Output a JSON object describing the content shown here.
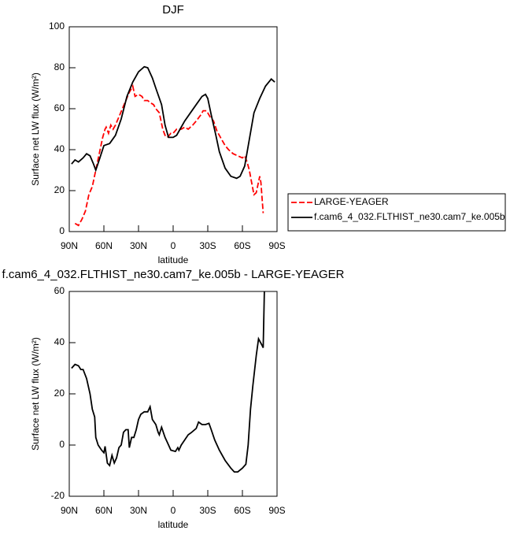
{
  "chart_data": [
    {
      "type": "line",
      "title": "DJF",
      "xlabel": "latitude",
      "ylabel": "Surface net LW flux (W/m²)",
      "xlim": [
        90,
        -90
      ],
      "xticks": [
        {
          "value": 90,
          "label": "90N"
        },
        {
          "value": 60,
          "label": "60N"
        },
        {
          "value": 30,
          "label": "30N"
        },
        0,
        {
          "value": -30,
          "label": "30S"
        },
        {
          "value": -60,
          "label": "60S"
        },
        {
          "value": -90,
          "label": "90S"
        }
      ],
      "ylim": [
        0,
        100
      ],
      "yticks": [
        0,
        20,
        40,
        60,
        80,
        100
      ],
      "legend": "right outside",
      "series": [
        {
          "name": "LARGE-YEAGER",
          "color": "#ff0000",
          "dashed": true,
          "x": [
            85,
            82,
            79,
            76,
            73,
            70,
            67,
            64,
            61,
            59,
            58,
            56,
            54,
            52,
            50,
            47,
            44,
            41,
            38,
            35,
            33,
            30,
            27,
            25,
            22,
            20,
            17,
            15,
            12,
            9,
            7,
            5,
            2,
            0,
            -3,
            -7,
            -10,
            -13,
            -17,
            -20,
            -24,
            -26,
            -29,
            -32,
            -35,
            -38,
            -42,
            -45,
            -48,
            -52,
            -56,
            -60,
            -62,
            -64,
            -66,
            -68,
            -70,
            -72,
            -75,
            -76,
            -78
          ],
          "values": [
            4,
            3,
            6,
            10,
            18,
            22,
            30,
            38,
            46,
            50,
            51,
            48,
            52,
            50,
            52,
            56,
            60,
            64,
            68,
            71,
            66,
            67,
            66,
            64,
            64,
            63,
            62,
            60,
            58,
            50,
            47,
            46,
            48,
            48,
            50,
            50,
            51,
            50,
            52,
            54,
            57,
            59,
            59,
            56,
            54,
            49,
            45,
            42,
            40,
            38,
            37,
            36,
            37,
            34,
            30,
            24,
            18,
            19,
            27,
            24,
            9
          ]
        },
        {
          "name": "f.cam6_4_032.FLTHIST_ne30.cam7_ke.005b",
          "color": "#000000",
          "dashed": false,
          "x": [
            88,
            85,
            82,
            78,
            75,
            72,
            69,
            67,
            64,
            60,
            55,
            50,
            45,
            40,
            35,
            30,
            25,
            22,
            18,
            15,
            10,
            7,
            4,
            0,
            -3,
            -6,
            -10,
            -15,
            -20,
            -25,
            -28,
            -30,
            -33,
            -37,
            -40,
            -45,
            -50,
            -55,
            -58,
            -62,
            -66,
            -70,
            -75,
            -80,
            -85,
            -88
          ],
          "values": [
            33,
            35,
            34,
            36,
            38,
            37,
            33,
            30,
            35,
            42,
            43,
            47,
            55,
            66,
            73,
            78,
            80.5,
            80,
            75,
            70,
            62,
            52,
            46,
            46,
            47,
            50,
            54,
            58,
            62,
            66,
            67,
            65,
            57,
            47,
            39,
            31,
            27,
            26,
            27,
            32,
            45,
            58,
            65,
            71,
            74.5,
            73
          ]
        }
      ]
    },
    {
      "type": "line",
      "title": "f.cam6_4_032.FLTHIST_ne30.cam7_ke.005b - LARGE-YEAGER",
      "xlabel": "latitude",
      "ylabel": "Surface net LW flux (W/m²)",
      "xlim": [
        90,
        -90
      ],
      "xticks": [
        {
          "value": 90,
          "label": "90N"
        },
        {
          "value": 60,
          "label": "60N"
        },
        {
          "value": 30,
          "label": "30N"
        },
        0,
        {
          "value": -30,
          "label": "30S"
        },
        {
          "value": -60,
          "label": "60S"
        },
        {
          "value": -90,
          "label": "90S"
        }
      ],
      "ylim": [
        -20,
        60
      ],
      "yticks": [
        -20,
        0,
        20,
        40,
        60
      ],
      "series": [
        {
          "color": "#000000",
          "dashed": false,
          "x": [
            88,
            85,
            82,
            80,
            78,
            75,
            72,
            70,
            68,
            67,
            65,
            62,
            60,
            59,
            57,
            55,
            53,
            51,
            49,
            47,
            45,
            43,
            41,
            39,
            38,
            36,
            34,
            32,
            30,
            28,
            25,
            22,
            20,
            18,
            15,
            13,
            12,
            10,
            7,
            5,
            2,
            -2,
            -4,
            -5,
            -7,
            -10,
            -13,
            -16,
            -20,
            -22,
            -25,
            -28,
            -31,
            -33,
            -36,
            -40,
            -45,
            -50,
            -53,
            -56,
            -60,
            -63,
            -65,
            -67,
            -69,
            -72,
            -74,
            -77,
            -78,
            -79
          ],
          "values": [
            30,
            31.5,
            31,
            29.5,
            29.5,
            26,
            20,
            14,
            11,
            3,
            0,
            -2,
            -3,
            -0.5,
            -7,
            -8,
            -4,
            -7,
            -5,
            -1,
            0,
            5,
            6,
            6,
            -1,
            3,
            3,
            6,
            10,
            12,
            13,
            13,
            15,
            10,
            8,
            5,
            4,
            7,
            3,
            1,
            -2,
            -2.5,
            -1,
            -2,
            0,
            2,
            4,
            5,
            6.5,
            9,
            8,
            8,
            8.5,
            6,
            2,
            -2,
            -6,
            -9,
            -10.5,
            -10.5,
            -9,
            -7.5,
            0,
            14,
            23,
            35,
            41.5,
            39,
            38,
            60
          ]
        }
      ]
    }
  ]
}
